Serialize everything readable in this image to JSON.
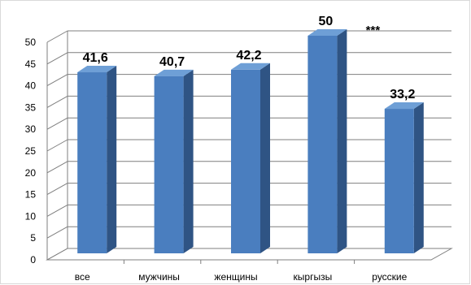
{
  "chart_data": {
    "type": "bar",
    "style": "3d",
    "categories": [
      "все",
      "мужчины",
      "женщины",
      "кыргызы",
      "русские"
    ],
    "values": [
      41.6,
      40.7,
      42.2,
      50,
      33.2
    ],
    "data_labels": [
      "41,6",
      "40,7",
      "42,2",
      "50",
      "33,2"
    ],
    "ylim": [
      0,
      50
    ],
    "yticks": [
      "0",
      "5",
      "10",
      "15",
      "20",
      "25",
      "30",
      "35",
      "40",
      "45",
      "50"
    ],
    "grid": true,
    "legend": "none",
    "annotations": [
      {
        "text": "***",
        "category": "кыргызы"
      }
    ],
    "colors": {
      "bar_front": "#4a7ebf",
      "bar_side": "#2f5484",
      "bar_top": "#6e9fd6",
      "grid": "#7f7f7f"
    }
  }
}
